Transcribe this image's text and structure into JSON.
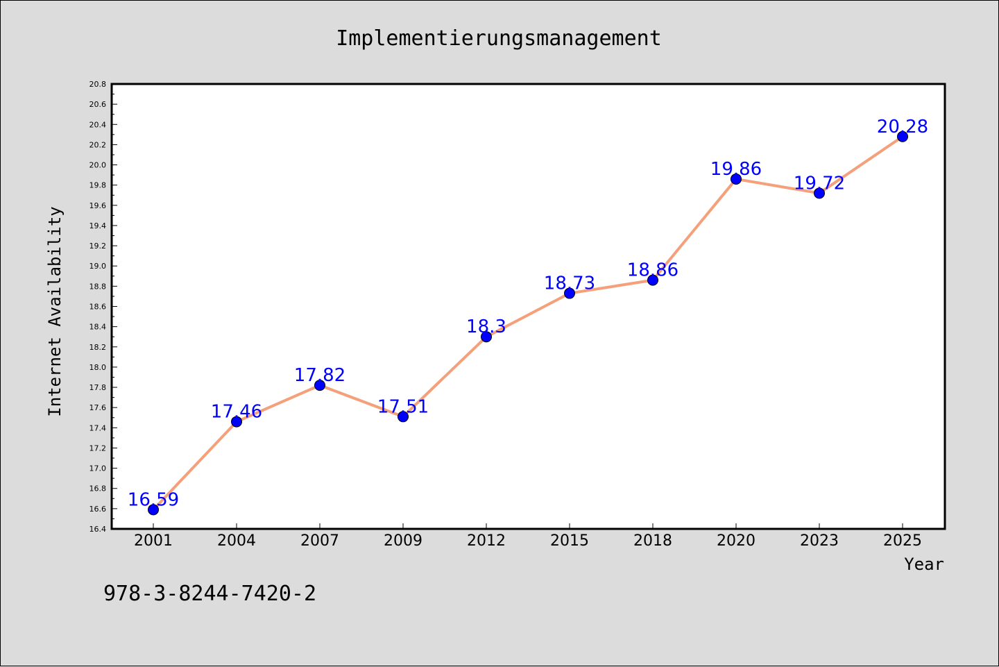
{
  "chart_data": {
    "type": "line",
    "title": "Implementierungsmanagement",
    "xlabel": "Year",
    "ylabel": "Internet Availability",
    "categories": [
      "2001",
      "2004",
      "2007",
      "2009",
      "2012",
      "2015",
      "2018",
      "2020",
      "2023",
      "2025"
    ],
    "series": [
      {
        "values": [
          16.59,
          17.46,
          17.82,
          17.51,
          18.3,
          18.73,
          18.86,
          19.86,
          19.72,
          20.28
        ],
        "labels": [
          "16.59",
          "17.46",
          "17.82",
          "17.51",
          "18.3",
          "18.73",
          "18.86",
          "19.86",
          "19.72",
          "20.28"
        ],
        "line_color": "#f4a07a",
        "marker_color": "#0000ff",
        "label_color": "#0000ff"
      }
    ],
    "ylim": [
      16.4,
      20.8
    ],
    "yticks": [
      "16.4",
      "16.6",
      "16.8",
      "17.0",
      "17.2",
      "17.4",
      "17.6",
      "17.8",
      "18.0",
      "18.2",
      "18.4",
      "18.6",
      "18.8",
      "19.0",
      "19.2",
      "19.4",
      "19.6",
      "19.8",
      "20.0",
      "20.2",
      "20.4",
      "20.6",
      "20.8"
    ],
    "grid": false,
    "legend": "none"
  },
  "footer": {
    "isbn": "978-3-8244-7420-2"
  },
  "colors": {
    "background": "#dcdcdc",
    "plot_background": "#ffffff"
  }
}
